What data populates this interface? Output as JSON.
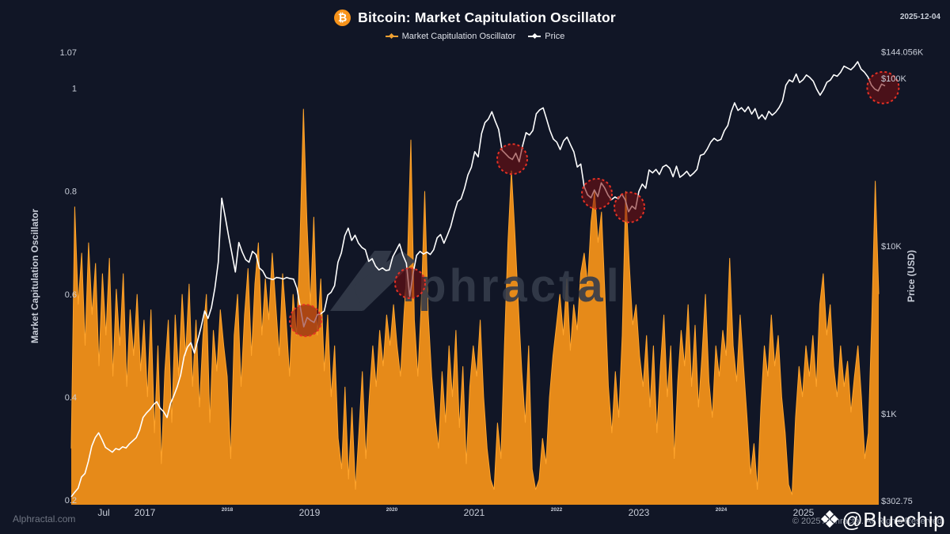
{
  "header": {
    "title": "Bitcoin: Market Capitulation Oscillator",
    "date": "2025-12-04",
    "bitcoin_symbol": "₿"
  },
  "legend": {
    "items": [
      {
        "label": "Market Capitulation Oscillator",
        "color": "#F0A032"
      },
      {
        "label": "Price",
        "color": "#FFFFFF"
      }
    ]
  },
  "watermark": {
    "text": "lphractal"
  },
  "footer": {
    "left": "Alphractal.com",
    "copyright": "© 2025 Alphractal. All Rights Reserved",
    "handle": "@Bluechip",
    "logo_icon": "binance-diamond",
    "logo_glyph": "❖"
  },
  "colors": {
    "background": "#111626",
    "area_orange": "#E68A19",
    "area_orange_bright": "#FFA42C",
    "price_white": "#FFFFFF",
    "marker_red": "#E53125",
    "marker_red_fill": "#7A0F0F",
    "watermark_gray": "#353C4B",
    "bitcoin_orange": "#F7931A",
    "tick_text": "#C8CDD8"
  },
  "chart_data": {
    "type": "area+line",
    "title": "Bitcoin: Market Capitulation Oscillator",
    "grid": false,
    "legend_position": "top-center",
    "x_axis": {
      "range_t": [
        2016.106,
        2025.99
      ],
      "ticks": [
        {
          "label": "Jul",
          "t": 2016.5,
          "minor": false
        },
        {
          "label": "2017",
          "t": 2017,
          "minor": false
        },
        {
          "label": "2018",
          "t": 2018,
          "minor": true
        },
        {
          "label": "2019",
          "t": 2019,
          "minor": false
        },
        {
          "label": "2020",
          "t": 2020,
          "minor": true
        },
        {
          "label": "2021",
          "t": 2021,
          "minor": false
        },
        {
          "label": "2022",
          "t": 2022,
          "minor": true
        },
        {
          "label": "2023",
          "t": 2023,
          "minor": false
        },
        {
          "label": "2024",
          "t": 2024,
          "minor": true
        },
        {
          "label": "2025",
          "t": 2025,
          "minor": false
        }
      ]
    },
    "left_axis": {
      "title": "Market Capitulation Oscillator",
      "scale": "linear",
      "range": [
        0.2,
        1.07
      ],
      "ticks": [
        {
          "label": "1.07",
          "value": 1.07
        },
        {
          "label": "1",
          "value": 1.0
        },
        {
          "label": "0.8",
          "value": 0.8
        },
        {
          "label": "0.6",
          "value": 0.6
        },
        {
          "label": "0.4",
          "value": 0.4
        },
        {
          "label": "0.2",
          "value": 0.2
        }
      ]
    },
    "right_axis": {
      "title": "Price (USD)",
      "scale": "log",
      "range": [
        302.75,
        144056
      ],
      "ticks": [
        {
          "label": "$144.056K",
          "value": 144056
        },
        {
          "label": "$100K",
          "value": 100000
        },
        {
          "label": "$10K",
          "value": 10000
        },
        {
          "label": "$1K",
          "value": 1000
        },
        {
          "label": "$302.75",
          "value": 302.75
        }
      ]
    },
    "series": [
      {
        "name": "Market Capitulation Oscillator",
        "type": "area",
        "axis": "left",
        "color": "#E68A19",
        "t_start": 2016.106,
        "t_end": 2025.913,
        "values": [
          0.3,
          0.77,
          0.58,
          0.68,
          0.5,
          0.7,
          0.56,
          0.66,
          0.46,
          0.64,
          0.52,
          0.67,
          0.44,
          0.61,
          0.5,
          0.64,
          0.42,
          0.57,
          0.48,
          0.6,
          0.45,
          0.55,
          0.4,
          0.57,
          0.33,
          0.5,
          0.27,
          0.45,
          0.55,
          0.35,
          0.56,
          0.44,
          0.6,
          0.48,
          0.62,
          0.42,
          0.55,
          0.38,
          0.52,
          0.6,
          0.35,
          0.53,
          0.45,
          0.57,
          0.5,
          0.44,
          0.28,
          0.52,
          0.6,
          0.42,
          0.56,
          0.65,
          0.48,
          0.62,
          0.7,
          0.52,
          0.63,
          0.55,
          0.68,
          0.58,
          0.48,
          0.64,
          0.55,
          0.44,
          0.6,
          0.52,
          0.7,
          0.96,
          0.74,
          0.58,
          0.75,
          0.52,
          0.63,
          0.45,
          0.56,
          0.4,
          0.5,
          0.32,
          0.26,
          0.42,
          0.24,
          0.38,
          0.22,
          0.33,
          0.45,
          0.28,
          0.4,
          0.5,
          0.42,
          0.53,
          0.46,
          0.56,
          0.5,
          0.58,
          0.5,
          0.44,
          0.56,
          0.66,
          0.9,
          0.55,
          0.44,
          0.58,
          0.8,
          0.56,
          0.44,
          0.36,
          0.3,
          0.45,
          0.35,
          0.5,
          0.4,
          0.53,
          0.34,
          0.46,
          0.27,
          0.42,
          0.5,
          0.44,
          0.55,
          0.4,
          0.3,
          0.24,
          0.22,
          0.35,
          0.28,
          0.5,
          0.7,
          0.84,
          0.72,
          0.58,
          0.45,
          0.35,
          0.5,
          0.26,
          0.22,
          0.24,
          0.32,
          0.27,
          0.4,
          0.48,
          0.54,
          0.6,
          0.52,
          0.63,
          0.49,
          0.58,
          0.53,
          0.64,
          0.68,
          0.62,
          0.74,
          0.8,
          0.7,
          0.76,
          0.6,
          0.42,
          0.33,
          0.45,
          0.36,
          0.52,
          0.8,
          0.66,
          0.54,
          0.58,
          0.48,
          0.42,
          0.52,
          0.38,
          0.5,
          0.33,
          0.46,
          0.56,
          0.4,
          0.5,
          0.28,
          0.43,
          0.53,
          0.46,
          0.58,
          0.42,
          0.54,
          0.38,
          0.48,
          0.6,
          0.43,
          0.36,
          0.5,
          0.44,
          0.53,
          0.48,
          0.67,
          0.5,
          0.43,
          0.56,
          0.46,
          0.36,
          0.25,
          0.31,
          0.22,
          0.38,
          0.5,
          0.44,
          0.56,
          0.46,
          0.52,
          0.4,
          0.33,
          0.23,
          0.21,
          0.36,
          0.46,
          0.4,
          0.5,
          0.44,
          0.52,
          0.42,
          0.58,
          0.64,
          0.52,
          0.58,
          0.46,
          0.4,
          0.5,
          0.42,
          0.47,
          0.37,
          0.44,
          0.5,
          0.4,
          0.28,
          0.33,
          0.55,
          0.82,
          0.6
        ]
      },
      {
        "name": "Price",
        "type": "line",
        "axis": "right",
        "color": "#FFFFFF",
        "t_start": 2016.106,
        "t_end": 2025.99,
        "values": [
          320,
          340,
          360,
          420,
          440,
          520,
          640,
          720,
          770,
          700,
          630,
          610,
          590,
          620,
          610,
          635,
          625,
          660,
          690,
          720,
          800,
          950,
          1010,
          1060,
          1130,
          1180,
          1080,
          1030,
          950,
          1150,
          1280,
          1450,
          1700,
          2200,
          2500,
          2650,
          2300,
          2750,
          3300,
          4100,
          3700,
          4300,
          5600,
          8000,
          19300,
          15000,
          11500,
          9000,
          7000,
          10500,
          9200,
          8300,
          8000,
          9300,
          8900,
          7400,
          7100,
          6500,
          6400,
          6300,
          6500,
          6450,
          6350,
          6500,
          6400,
          6350,
          5600,
          4300,
          3300,
          3750,
          3600,
          3500,
          3900,
          3950,
          4100,
          5100,
          5300,
          5800,
          8000,
          9100,
          11500,
          12800,
          10800,
          11600,
          10400,
          9800,
          9500,
          8100,
          8400,
          7600,
          7200,
          7400,
          7150,
          7200,
          8600,
          9400,
          10300,
          8800,
          7900,
          5000,
          6900,
          8800,
          9300,
          8950,
          9200,
          8900,
          9500,
          11200,
          11700,
          10400,
          11600,
          13100,
          15800,
          18400,
          19100,
          22000,
          26500,
          29500,
          36500,
          34000,
          46800,
          54500,
          57200,
          63200,
          55500,
          49500,
          37200,
          35500,
          33800,
          32800,
          35800,
          31800,
          39600,
          47400,
          45900,
          48900,
          61400,
          64800,
          66700,
          57200,
          48800,
          43400,
          41600,
          37600,
          42400,
          44600,
          40200,
          36400,
          29600,
          30800,
          22600,
          20200,
          19400,
          21600,
          19700,
          23800,
          22200,
          20100,
          18900,
          19600,
          19100,
          20400,
          18900,
          16000,
          17300,
          16600,
          21200,
          23400,
          22100,
          28400,
          27300,
          28600,
          26700,
          29600,
          30400,
          29100,
          25900,
          29900,
          25700,
          26600,
          27900,
          26100,
          27200,
          28600,
          34700,
          35300,
          37900,
          41600,
          43900,
          42400,
          43200,
          48700,
          52300,
          63100,
          71400,
          64300,
          66800,
          63200,
          67600,
          61200,
          65900,
          57400,
          60700,
          56900,
          63600,
          60300,
          62800,
          66900,
          73200,
          91000,
          97800,
          95200,
          106000,
          94300,
          97900,
          104600,
          101200,
          96100,
          86200,
          79300,
          85400,
          94700,
          97600,
          104900,
          102800,
          108600,
          118200,
          115300,
          112400,
          117800,
          125600,
          113400,
          108700,
          101800,
          91200,
          86300,
          84100,
          92400,
          90100
        ]
      }
    ],
    "capitulation_markers": [
      {
        "t": 2018.952,
        "price": 3600,
        "r": 20
      },
      {
        "t": 2020.221,
        "price": 6000,
        "r": 19
      },
      {
        "t": 2021.462,
        "price": 33000,
        "r": 19
      },
      {
        "t": 2022.49,
        "price": 20500,
        "r": 19
      },
      {
        "t": 2022.885,
        "price": 17000,
        "r": 19
      },
      {
        "t": 2025.965,
        "price": 88000,
        "r": 20
      }
    ]
  }
}
